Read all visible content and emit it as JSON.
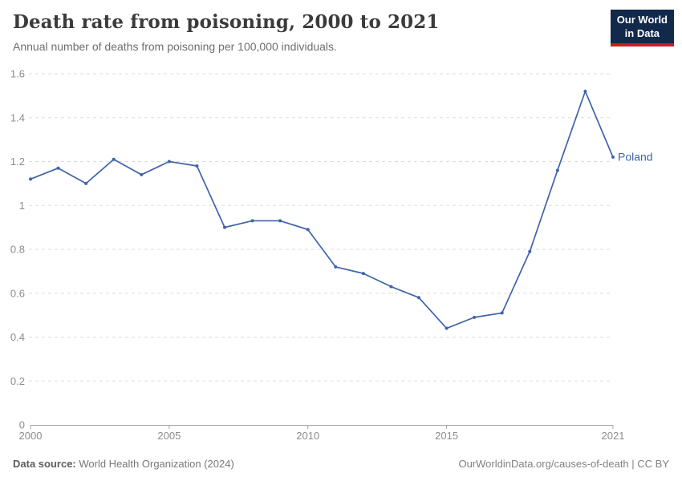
{
  "header": {
    "title": "Death rate from poisoning, 2000 to 2021",
    "subtitle": "Annual number of deaths from poisoning per 100,000 individuals.",
    "logo": {
      "line1": "Our World",
      "line2": "in Data"
    }
  },
  "chart_data": {
    "type": "line",
    "title": "Death rate from poisoning, 2000 to 2021",
    "subtitle": "Annual number of deaths from poisoning per 100,000 individuals.",
    "x": [
      2000,
      2001,
      2002,
      2003,
      2004,
      2005,
      2006,
      2007,
      2008,
      2009,
      2010,
      2011,
      2012,
      2013,
      2014,
      2015,
      2016,
      2017,
      2018,
      2019,
      2020,
      2021
    ],
    "series": [
      {
        "name": "Poland",
        "color": "#4063a9",
        "values": [
          1.12,
          1.17,
          1.1,
          1.21,
          1.14,
          1.2,
          1.18,
          0.9,
          0.93,
          0.93,
          0.89,
          0.72,
          0.69,
          0.63,
          0.58,
          0.44,
          0.49,
          0.51,
          0.79,
          1.16,
          1.52,
          1.22
        ]
      }
    ],
    "xlabel": "",
    "ylabel": "",
    "xlim": [
      2000,
      2021
    ],
    "ylim": [
      0,
      1.6
    ],
    "yticks": [
      0,
      0.2,
      0.4,
      0.6,
      0.8,
      1,
      1.2,
      1.4,
      1.6
    ],
    "ytick_labels": [
      "0",
      "0.2",
      "0.4",
      "0.6",
      "0.8",
      "1",
      "1.2",
      "1.4",
      "1.6"
    ],
    "xticks": [
      2000,
      2005,
      2010,
      2015,
      2021
    ],
    "xtick_labels": [
      "2000",
      "2005",
      "2010",
      "2015",
      "2021"
    ],
    "grid": "horizontal-dashed",
    "legend_position": "end-of-line-label"
  },
  "footer": {
    "source_label": "Data source:",
    "source_value": " World Health Organization (2024)",
    "link": "OurWorldinData.org/causes-of-death | CC BY"
  },
  "colors": {
    "line": "#4063a9",
    "gridline": "#dddddd",
    "axis": "#a3a3a3",
    "tick_label": "#8c8c8c",
    "logo_navy": "#12294b",
    "logo_red": "#c4201c"
  }
}
